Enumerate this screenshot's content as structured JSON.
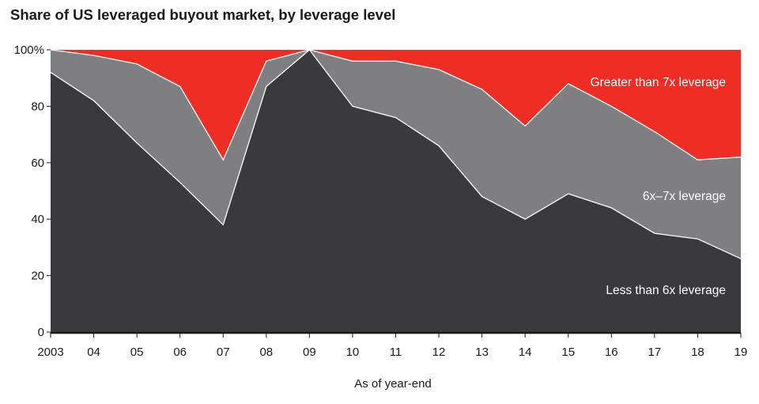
{
  "chart_data": {
    "type": "area",
    "title": "Share of US leveraged buyout market, by leverage level",
    "xlabel": "As of year-end",
    "ylabel": "",
    "ylim": [
      0,
      100
    ],
    "stacked": true,
    "normalized_100": true,
    "grid": false,
    "legend": "inline labels on areas",
    "x": [
      "2003",
      "04",
      "05",
      "06",
      "07",
      "08",
      "09",
      "10",
      "11",
      "12",
      "13",
      "14",
      "15",
      "16",
      "17",
      "18",
      "19"
    ],
    "y_ticks": [
      "0",
      "20",
      "40",
      "60",
      "80",
      "100%"
    ],
    "series": [
      {
        "name": "Less than 6x leverage",
        "color": "#3a393b",
        "values": [
          92,
          82,
          67,
          53,
          38,
          87,
          100,
          80,
          76,
          66,
          48,
          40,
          49,
          44,
          35,
          33,
          26
        ]
      },
      {
        "name": "6x–7x leverage",
        "color": "#7f7f82",
        "values": [
          8,
          16,
          28,
          34,
          23,
          9,
          0,
          16,
          20,
          27,
          38,
          33,
          39,
          36,
          36,
          28,
          36
        ]
      },
      {
        "name": "Greater than 7x leverage",
        "color": "#ee2d24",
        "values": [
          0,
          2,
          5,
          13,
          39,
          4,
          0,
          4,
          4,
          7,
          14,
          27,
          12,
          20,
          29,
          39,
          38
        ]
      }
    ]
  }
}
